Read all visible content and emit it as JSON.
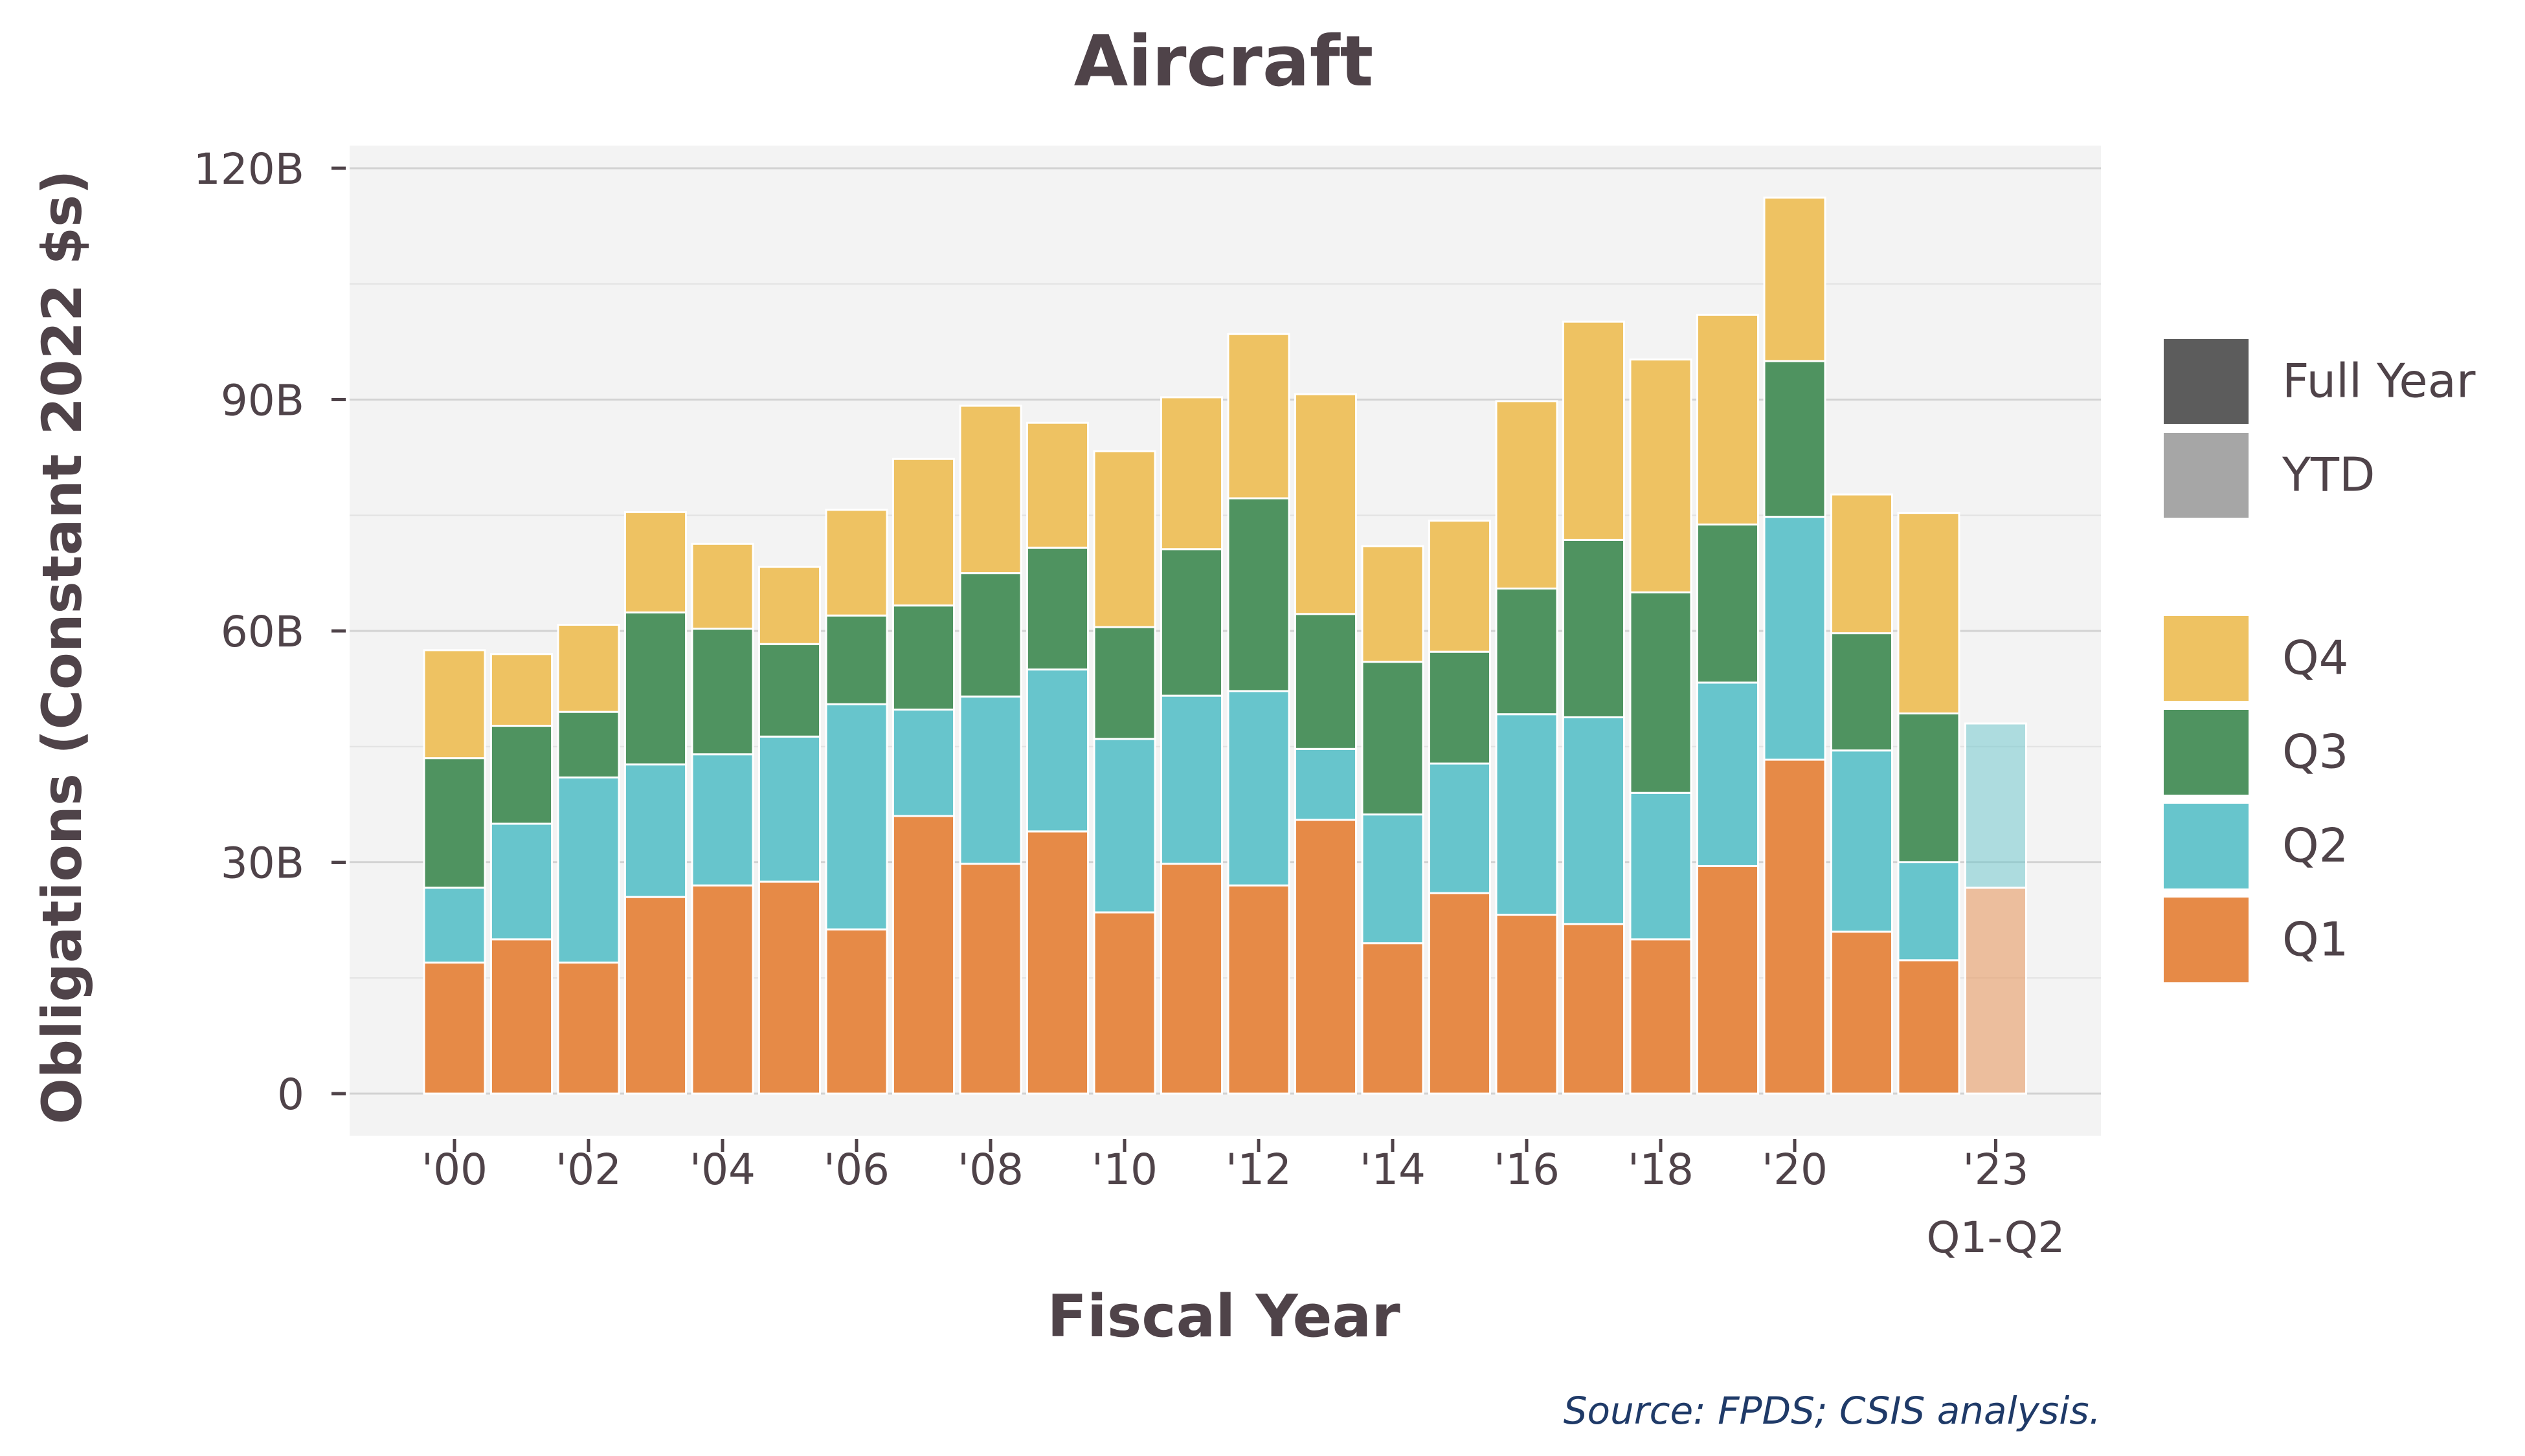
{
  "chart_data": {
    "type": "bar",
    "stacked": true,
    "title": "Aircraft",
    "xlabel": "Fiscal Year",
    "ylabel": "Obligations (Constant 2022 $s)",
    "source": "Source: FPDS; CSIS analysis.",
    "ylim": [
      0,
      120
    ],
    "y_unit": "B",
    "yticks": [
      {
        "value": 0,
        "label": "0"
      },
      {
        "value": 30,
        "label": "30B"
      },
      {
        "value": 60,
        "label": "60B"
      },
      {
        "value": 90,
        "label": "90B"
      },
      {
        "value": 120,
        "label": "120B"
      }
    ],
    "xticks": [
      {
        "category": "2000",
        "label": "'00"
      },
      {
        "category": "2002",
        "label": "'02"
      },
      {
        "category": "2004",
        "label": "'04"
      },
      {
        "category": "2006",
        "label": "'06"
      },
      {
        "category": "2008",
        "label": "'08"
      },
      {
        "category": "2010",
        "label": "'10"
      },
      {
        "category": "2012",
        "label": "'12"
      },
      {
        "category": "2014",
        "label": "'14"
      },
      {
        "category": "2016",
        "label": "'16"
      },
      {
        "category": "2018",
        "label": "'18"
      },
      {
        "category": "2020",
        "label": "'20"
      },
      {
        "category": "2023",
        "label": "'23",
        "sublabel": "Q1-Q2"
      }
    ],
    "categories": [
      "2000",
      "2001",
      "2002",
      "2003",
      "2004",
      "2005",
      "2006",
      "2007",
      "2008",
      "2009",
      "2010",
      "2011",
      "2012",
      "2013",
      "2014",
      "2015",
      "2016",
      "2017",
      "2018",
      "2019",
      "2020",
      "2021",
      "2022",
      "2023"
    ],
    "period_type": [
      "Full Year",
      "Full Year",
      "Full Year",
      "Full Year",
      "Full Year",
      "Full Year",
      "Full Year",
      "Full Year",
      "Full Year",
      "Full Year",
      "Full Year",
      "Full Year",
      "Full Year",
      "Full Year",
      "Full Year",
      "Full Year",
      "Full Year",
      "Full Year",
      "Full Year",
      "Full Year",
      "Full Year",
      "Full Year",
      "Full Year",
      "YTD"
    ],
    "series": [
      {
        "name": "Q1",
        "color": "#e68a47",
        "values": [
          17.0,
          20.0,
          17.0,
          25.5,
          27.0,
          27.5,
          21.3,
          36.0,
          29.8,
          34.0,
          23.5,
          29.8,
          27.0,
          35.5,
          19.5,
          26.0,
          23.2,
          22.0,
          20.0,
          29.5,
          43.3,
          21.0,
          17.3,
          26.7
        ]
      },
      {
        "name": "Q2",
        "color": "#67c5cc",
        "values": [
          9.7,
          15.0,
          24.0,
          17.2,
          17.0,
          18.8,
          29.2,
          13.8,
          21.7,
          21.0,
          22.5,
          21.8,
          25.2,
          9.2,
          16.7,
          16.8,
          26.0,
          26.8,
          19.0,
          23.8,
          31.5,
          23.5,
          12.7,
          21.3
        ]
      },
      {
        "name": "Q3",
        "color": "#4f9360",
        "values": [
          16.8,
          12.7,
          8.5,
          19.7,
          16.3,
          12.0,
          11.5,
          13.5,
          16.0,
          15.8,
          14.5,
          19.0,
          25.0,
          17.5,
          19.8,
          14.5,
          16.3,
          23.0,
          26.0,
          20.5,
          20.2,
          15.2,
          19.3,
          0
        ]
      },
      {
        "name": "Q4",
        "color": "#eec262",
        "values": [
          14.0,
          9.3,
          11.3,
          13.0,
          11.0,
          10.0,
          13.7,
          19.0,
          21.7,
          16.2,
          22.8,
          19.7,
          21.3,
          28.5,
          15.0,
          17.0,
          24.3,
          28.3,
          30.2,
          27.2,
          21.2,
          18.0,
          26.0,
          0
        ]
      }
    ],
    "legend": {
      "placement": "right",
      "period_items": [
        {
          "label": "Full Year",
          "color": "#5c5c5c"
        },
        {
          "label": "YTD",
          "color": "#a6a6a6"
        }
      ],
      "quarter_items": [
        {
          "label": "Q4",
          "color": "#eec262"
        },
        {
          "label": "Q3",
          "color": "#4f9360"
        },
        {
          "label": "Q2",
          "color": "#67c5cc"
        },
        {
          "label": "Q1",
          "color": "#e68a47"
        }
      ]
    },
    "grid": true,
    "panel_color": "#f3f3f3",
    "ytd_opacity": 0.5
  }
}
